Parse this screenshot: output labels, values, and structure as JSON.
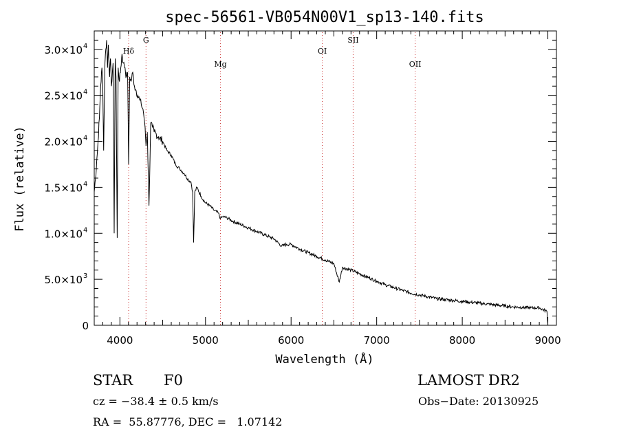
{
  "chart_data": {
    "type": "line",
    "title": "spec-56561-VB054N00V1_sp13-140.fits",
    "xlabel": "Wavelength (Å)",
    "ylabel": "Flux (relative)",
    "xlim": [
      3700,
      9100
    ],
    "ylim": [
      0,
      32000
    ],
    "x_ticks": [
      4000,
      5000,
      6000,
      7000,
      8000,
      9000
    ],
    "y_ticks": [
      {
        "value": 0,
        "mantissa": "0",
        "exponent": ""
      },
      {
        "value": 5000,
        "mantissa": "5.0×10",
        "exponent": "3"
      },
      {
        "value": 10000,
        "mantissa": "1.0×10",
        "exponent": "4"
      },
      {
        "value": 15000,
        "mantissa": "1.5×10",
        "exponent": "4"
      },
      {
        "value": 20000,
        "mantissa": "2.0×10",
        "exponent": "4"
      },
      {
        "value": 25000,
        "mantissa": "2.5×10",
        "exponent": "4"
      },
      {
        "value": 30000,
        "mantissa": "3.0×10",
        "exponent": "4"
      }
    ],
    "grid": false,
    "line_color": "#000000",
    "marker_color": "#cc3333",
    "line_markers": [
      {
        "label": "Hδ",
        "x": 4102,
        "label_level": "high"
      },
      {
        "label": "G",
        "x": 4305,
        "label_level": "top"
      },
      {
        "label": "Mg",
        "x": 5175,
        "label_level": "low"
      },
      {
        "label": "OI",
        "x": 6364,
        "label_level": "mid"
      },
      {
        "label": "SII",
        "x": 6725,
        "label_level": "top"
      },
      {
        "label": "OII",
        "x": 7450,
        "label_level": "low"
      }
    ],
    "series": [
      {
        "x": [
          3700,
          3715,
          3730,
          3745,
          3760,
          3775,
          3790,
          3800,
          3810,
          3825,
          3835,
          3845,
          3855,
          3865,
          3880,
          3890,
          3900,
          3920,
          3933,
          3945,
          3955,
          3968,
          3980,
          3995,
          4010,
          4025,
          4040,
          4060,
          4075,
          4090,
          4102,
          4115,
          4130,
          4150,
          4170,
          4190,
          4210,
          4230,
          4250,
          4270,
          4290,
          4305,
          4320,
          4340,
          4360,
          4380,
          4400,
          4450,
          4500,
          4550,
          4600,
          4650,
          4700,
          4750,
          4800,
          4830,
          4850,
          4861,
          4875,
          4900,
          4950,
          5000,
          5050,
          5100,
          5150,
          5175,
          5200,
          5250,
          5300,
          5400,
          5500,
          5600,
          5700,
          5800,
          5890,
          5950,
          6000,
          6100,
          6200,
          6300,
          6400,
          6500,
          6563,
          6600,
          6700,
          6800,
          6900,
          7000,
          7100,
          7200,
          7300,
          7400,
          7500,
          7600,
          7700,
          7800,
          7900,
          8000,
          8100,
          8200,
          8300,
          8400,
          8500,
          8600,
          8700,
          8800,
          8900,
          8990,
          9000
        ],
        "y": [
          14500,
          16000,
          18000,
          20000,
          22500,
          26000,
          28000,
          26000,
          19000,
          28500,
          30000,
          31000,
          28000,
          30500,
          27000,
          29000,
          26000,
          28500,
          10000,
          29000,
          27000,
          9500,
          28000,
          26500,
          28000,
          29500,
          28500,
          28000,
          27000,
          27500,
          17500,
          27000,
          26500,
          27500,
          26000,
          25500,
          25000,
          24500,
          24000,
          23500,
          22000,
          19500,
          21000,
          13000,
          22000,
          21500,
          21000,
          20500,
          20000,
          19000,
          18500,
          17500,
          17000,
          16500,
          15800,
          15600,
          14500,
          9000,
          14500,
          15000,
          14000,
          13300,
          13000,
          12500,
          12200,
          11600,
          11800,
          11700,
          11400,
          11000,
          10600,
          10200,
          9800,
          9400,
          8600,
          8800,
          8800,
          8300,
          7900,
          7500,
          7100,
          6700,
          4700,
          6300,
          6000,
          5600,
          5200,
          4800,
          4400,
          4100,
          3800,
          3500,
          3300,
          3100,
          2900,
          2800,
          2700,
          2600,
          2500,
          2400,
          2300,
          2200,
          2100,
          2000,
          1950,
          1900,
          1900,
          1500,
          100
        ]
      }
    ]
  },
  "info": {
    "object_type": "STAR",
    "subclass": "F0",
    "survey": "LAMOST DR2",
    "cz_text": "cz = −38.4 ± 0.5 km/s",
    "obs_date_text": "Obs−Date: 20130925",
    "radec_text": "RA =  55.87776, DEC =   1.07142"
  }
}
